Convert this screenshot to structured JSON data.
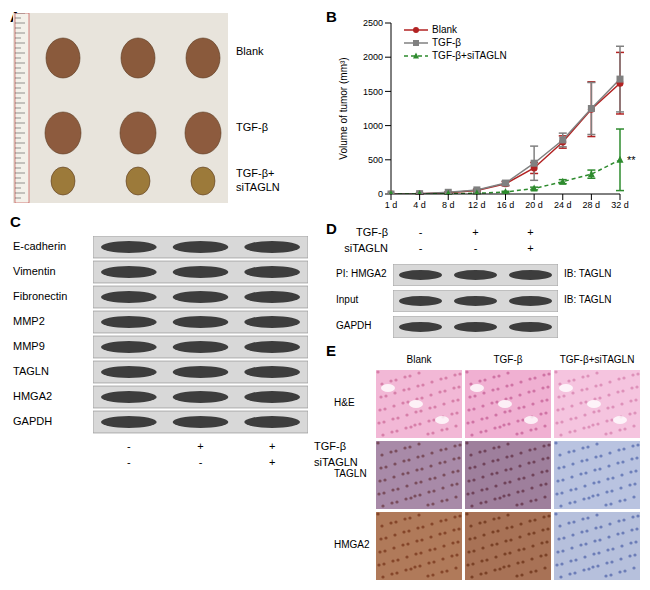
{
  "panels": {
    "A": {
      "label": "A",
      "groups": [
        [
          "Blank"
        ],
        [
          "TGF-β"
        ],
        [
          "TGF-β+",
          "siTAGLN"
        ]
      ]
    },
    "B": {
      "label": "B"
    },
    "C": {
      "label": "C",
      "rows": [
        "E-cadherin",
        "Vimentin",
        "Fibronectin",
        "MMP2",
        "MMP9",
        "TAGLN",
        "HMGA2",
        "GAPDH"
      ],
      "conditions": [
        {
          "name": "TGF-β",
          "marks": [
            "-",
            "+",
            "+"
          ]
        },
        {
          "name": "siTAGLN",
          "marks": [
            "-",
            "-",
            "+"
          ]
        }
      ]
    },
    "D": {
      "label": "D",
      "conditions": [
        {
          "name": "TGF-β",
          "marks": [
            "-",
            "+",
            "+"
          ]
        },
        {
          "name": "siTAGLN",
          "marks": [
            "-",
            "-",
            "+"
          ]
        }
      ],
      "rows": [
        {
          "left": "PI: HMGA2",
          "right": "IB: TAGLN"
        },
        {
          "left": "Input",
          "right": "IB: TAGLN"
        },
        {
          "left": "GAPDH"
        }
      ]
    },
    "E": {
      "label": "E",
      "columns": [
        "Blank",
        "TGF-β",
        "TGF-β+siTAGLN"
      ],
      "rows": [
        "H&E",
        "TAGLN",
        "HMGA2"
      ]
    }
  },
  "chart_data": {
    "type": "line",
    "y_label": "Volume of tumor (mm³)",
    "categories": [
      "1 d",
      "4 d",
      "8 d",
      "12 d",
      "16 d",
      "20 d",
      "24 d",
      "28 d",
      "32 d"
    ],
    "ylim": [
      0,
      2500
    ],
    "yticks": [
      0,
      500,
      1000,
      1500,
      2000,
      2500
    ],
    "grid": false,
    "legend": "upper left",
    "series": [
      {
        "name": "Blank",
        "color": "#b22222",
        "marker": "circle",
        "line_style": "solid",
        "values": [
          0,
          5,
          20,
          50,
          150,
          380,
          760,
          1240,
          1620
        ],
        "errors": [
          0,
          3,
          8,
          15,
          30,
          80,
          90,
          400,
          450
        ]
      },
      {
        "name": "TGF-β",
        "color": "#808080",
        "marker": "square",
        "line_style": "solid",
        "values": [
          0,
          5,
          25,
          60,
          160,
          450,
          790,
          1250,
          1680
        ],
        "errors": [
          0,
          3,
          8,
          15,
          30,
          250,
          100,
          380,
          480
        ]
      },
      {
        "name": "TGF-β+siTAGLN",
        "color": "#2e8b2e",
        "marker": "triangle",
        "line_style": "dashed",
        "values": [
          0,
          0,
          5,
          10,
          30,
          80,
          180,
          290,
          500
        ],
        "errors": [
          0,
          0,
          3,
          5,
          10,
          20,
          30,
          60,
          450
        ]
      }
    ],
    "annotations": [
      {
        "text": "**",
        "x": "32 d",
        "y": 500
      }
    ]
  }
}
